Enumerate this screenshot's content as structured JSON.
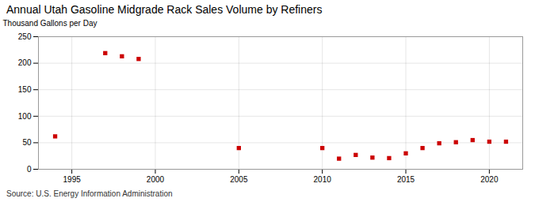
{
  "chart_data": {
    "type": "scatter",
    "title": "Annual Utah Gasoline Midgrade Rack Sales Volume by Refiners",
    "ylabel": "Thousand Gallons per Day",
    "source": "Source: U.S. Energy Information Administration",
    "x": [
      1994,
      1997,
      1998,
      1999,
      2005,
      2010,
      2011,
      2012,
      2013,
      2014,
      2015,
      2016,
      2017,
      2018,
      2019,
      2020,
      2021
    ],
    "values": [
      62,
      219,
      213,
      208,
      40,
      40,
      20,
      27,
      22,
      21,
      30,
      40,
      49,
      51,
      55,
      52,
      52
    ],
    "color": "#cc0000",
    "marker": "square",
    "xlim": [
      1993,
      2022
    ],
    "xticks": [
      1995,
      2000,
      2005,
      2010,
      2015,
      2020
    ],
    "ylim": [
      0,
      250
    ],
    "yticks": [
      0,
      50,
      100,
      150,
      200,
      250
    ],
    "grid": true
  }
}
